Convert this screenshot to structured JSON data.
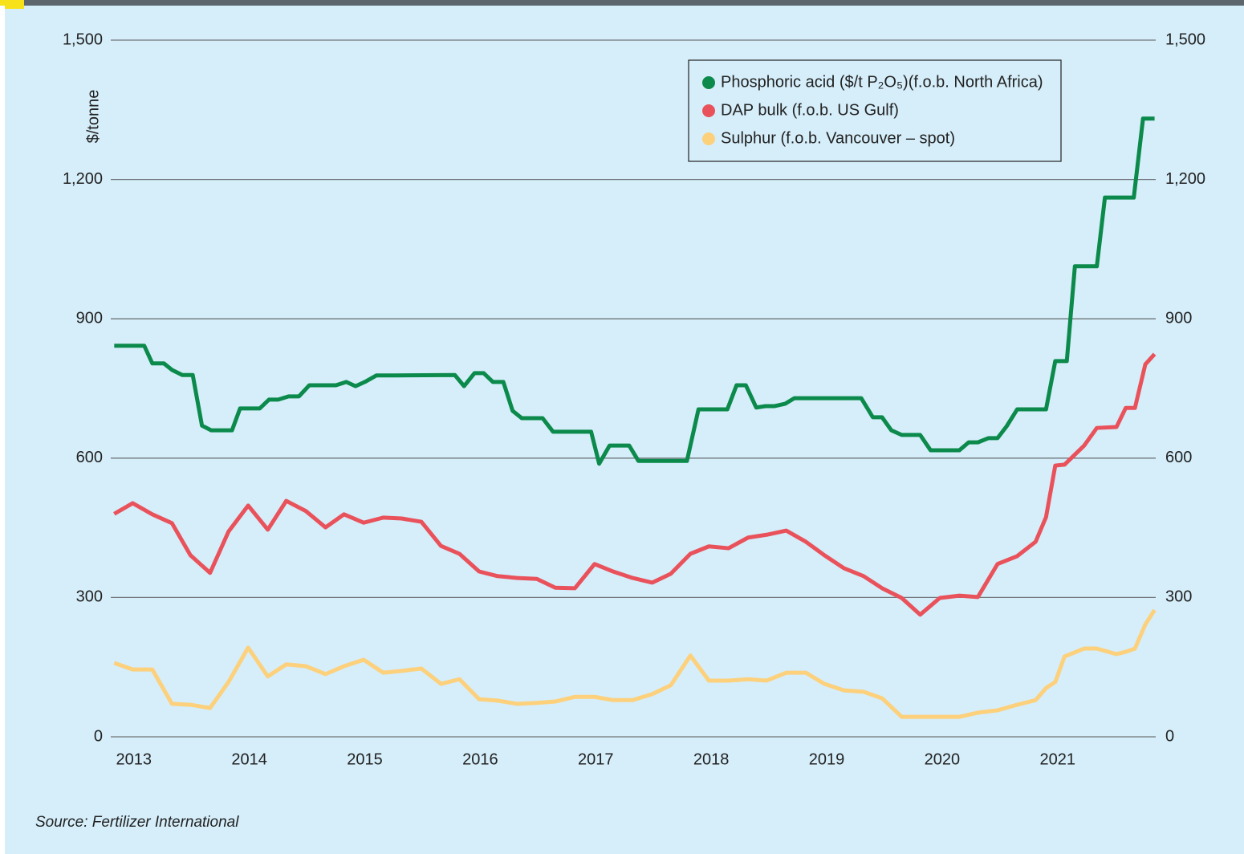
{
  "chart_data": {
    "type": "line",
    "y_axis_label": "$/tonne",
    "source": "Source: Fertilizer International",
    "xlim": [
      2012.8,
      2021.85
    ],
    "xticks": [
      2013,
      2014,
      2015,
      2016,
      2017,
      2018,
      2019,
      2020,
      2021
    ],
    "ylim": [
      0,
      1500
    ],
    "yticks": [
      0,
      {
        "value": 300,
        "label": "300"
      },
      600,
      900,
      {
        "value": 1200,
        "label": "1,200"
      },
      {
        "value": 1500,
        "label": "1,500"
      }
    ],
    "grid": true,
    "legend": "top-right",
    "right_axis_mirror": true,
    "series": [
      {
        "name": "Phosphoric acid ($/t P₂O₅)(f.o.b. North Africa)",
        "color": "#0b8a4b",
        "x": [
          2012.83,
          2013.09,
          2013.16,
          2013.26,
          2013.33,
          2013.42,
          2013.51,
          2013.59,
          2013.67,
          2013.85,
          2013.92,
          2014.09,
          2014.17,
          2014.25,
          2014.34,
          2014.43,
          2014.52,
          2014.75,
          2014.84,
          2014.92,
          2015.0,
          2015.1,
          2015.27,
          2015.78,
          2015.86,
          2015.95,
          2016.03,
          2016.11,
          2016.2,
          2016.28,
          2016.36,
          2016.54,
          2016.63,
          2016.96,
          2017.03,
          2017.12,
          2017.29,
          2017.37,
          2017.79,
          2017.89,
          2018.14,
          2018.22,
          2018.3,
          2018.39,
          2018.47,
          2018.55,
          2018.64,
          2018.72,
          2019.3,
          2019.4,
          2019.48,
          2019.56,
          2019.65,
          2019.81,
          2019.9,
          2020.15,
          2020.23,
          2020.31,
          2020.4,
          2020.48,
          2020.56,
          2020.65,
          2020.9,
          2020.98,
          2021.08,
          2021.15,
          2021.34,
          2021.41,
          2021.66,
          2021.74,
          2021.84
        ],
        "values": [
          842,
          842,
          804,
          804,
          790,
          779,
          779,
          670,
          660,
          660,
          707,
          707,
          726,
          726,
          733,
          733,
          757,
          757,
          764,
          755,
          764,
          778,
          778,
          779,
          755,
          783,
          783,
          764,
          764,
          702,
          686,
          686,
          657,
          657,
          588,
          627,
          627,
          594,
          594,
          705,
          705,
          757,
          757,
          709,
          712,
          712,
          717,
          729,
          729,
          688,
          688,
          660,
          650,
          650,
          617,
          617,
          634,
          634,
          643,
          643,
          669,
          705,
          705,
          809,
          809,
          1013,
          1013,
          1161,
          1161,
          1331,
          1331
        ]
      },
      {
        "name": "DAP bulk (f.o.b. US Gulf)",
        "color": "#e9525b",
        "x": [
          2012.83,
          2012.99,
          2013.16,
          2013.33,
          2013.49,
          2013.66,
          2013.82,
          2013.99,
          2014.16,
          2014.32,
          2014.49,
          2014.66,
          2014.82,
          2014.99,
          2015.16,
          2015.32,
          2015.49,
          2015.66,
          2015.82,
          2015.99,
          2016.15,
          2016.32,
          2016.49,
          2016.65,
          2016.82,
          2016.99,
          2017.15,
          2017.32,
          2017.49,
          2017.65,
          2017.82,
          2017.98,
          2018.15,
          2018.32,
          2018.48,
          2018.65,
          2018.82,
          2018.98,
          2019.15,
          2019.32,
          2019.48,
          2019.65,
          2019.81,
          2019.98,
          2020.15,
          2020.31,
          2020.48,
          2020.65,
          2020.81,
          2020.9,
          2020.98,
          2021.06,
          2021.23,
          2021.34,
          2021.51,
          2021.59,
          2021.67,
          2021.76,
          2021.84
        ],
        "values": [
          480,
          503,
          479,
          460,
          391,
          353,
          442,
          498,
          446,
          508,
          486,
          451,
          479,
          461,
          472,
          470,
          463,
          411,
          394,
          356,
          346,
          342,
          340,
          321,
          320,
          372,
          356,
          342,
          332,
          351,
          394,
          410,
          406,
          429,
          435,
          444,
          420,
          391,
          363,
          346,
          320,
          299,
          263,
          299,
          304,
          301,
          372,
          389,
          420,
          473,
          584,
          586,
          627,
          665,
          667,
          708,
          708,
          802,
          824
        ]
      },
      {
        "name": "Sulphur (f.o.b. Vancouver – spot)",
        "color": "#fdd07c",
        "x": [
          2012.83,
          2012.99,
          2013.16,
          2013.33,
          2013.49,
          2013.66,
          2013.82,
          2013.99,
          2014.16,
          2014.32,
          2014.49,
          2014.66,
          2014.82,
          2014.99,
          2015.16,
          2015.32,
          2015.49,
          2015.66,
          2015.82,
          2015.99,
          2016.15,
          2016.32,
          2016.49,
          2016.65,
          2016.82,
          2016.99,
          2017.15,
          2017.32,
          2017.49,
          2017.65,
          2017.82,
          2017.98,
          2018.15,
          2018.32,
          2018.48,
          2018.65,
          2018.82,
          2018.98,
          2019.15,
          2019.32,
          2019.48,
          2019.65,
          2019.81,
          2019.98,
          2020.15,
          2020.31,
          2020.48,
          2020.65,
          2020.81,
          2020.9,
          2020.98,
          2021.06,
          2021.23,
          2021.34,
          2021.51,
          2021.59,
          2021.67,
          2021.76,
          2021.84
        ],
        "values": [
          159,
          145,
          145,
          71,
          69,
          62,
          118,
          192,
          130,
          156,
          152,
          135,
          152,
          166,
          138,
          142,
          147,
          114,
          124,
          81,
          78,
          71,
          73,
          76,
          86,
          86,
          79,
          79,
          92,
          111,
          175,
          121,
          121,
          124,
          121,
          138,
          138,
          114,
          100,
          97,
          83,
          43,
          43,
          43,
          43,
          52,
          57,
          69,
          79,
          105,
          118,
          173,
          190,
          190,
          178,
          183,
          190,
          242,
          273
        ]
      }
    ]
  }
}
